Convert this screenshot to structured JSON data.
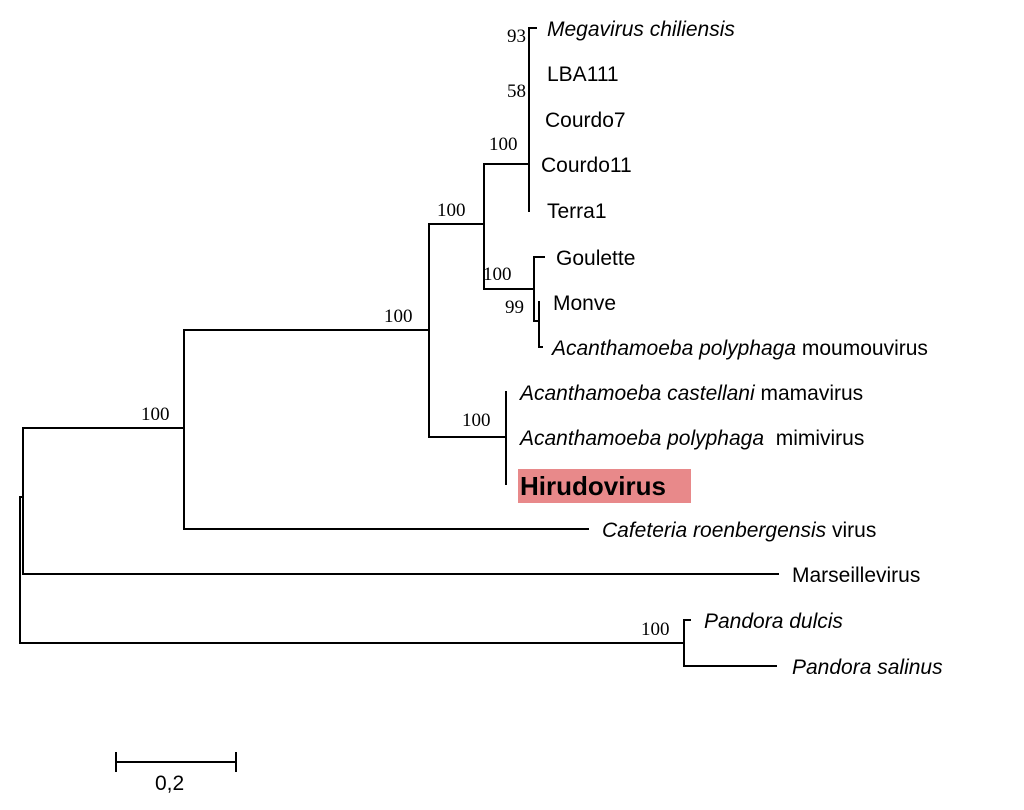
{
  "taxa": {
    "megavirus": [
      {
        "text": "Megavirus chiliensis",
        "italic": true
      }
    ],
    "lba111": [
      {
        "text": "LBA111",
        "italic": false
      }
    ],
    "courdo7": [
      {
        "text": "Courdo7",
        "italic": false
      }
    ],
    "courdo11": [
      {
        "text": "Courdo11",
        "italic": false
      }
    ],
    "terra1": [
      {
        "text": "Terra1",
        "italic": false
      }
    ],
    "goulette": [
      {
        "text": "Goulette",
        "italic": false
      }
    ],
    "monve": [
      {
        "text": "Monve",
        "italic": false
      }
    ],
    "moumouvirus": [
      {
        "text": "Acanthamoeba polyphaga",
        "italic": true
      },
      {
        "text": " moumouvirus",
        "italic": false
      }
    ],
    "mamavirus": [
      {
        "text": "Acanthamoeba castellani",
        "italic": true
      },
      {
        "text": " mamavirus",
        "italic": false
      }
    ],
    "mimivirus": [
      {
        "text": "Acanthamoeba polyphaga",
        "italic": true
      },
      {
        "text": "  mimivirus",
        "italic": false
      }
    ],
    "hirudovirus": [
      {
        "text": "Hirudovirus",
        "italic": false
      }
    ],
    "cafeteria": [
      {
        "text": "Cafeteria roenbergensis",
        "italic": true
      },
      {
        "text": " virus",
        "italic": false
      }
    ],
    "marseillevirus": [
      {
        "text": "Marseillevirus",
        "italic": false
      }
    ],
    "pandora_dulcis": [
      {
        "text": "Pandora dulcis",
        "italic": true
      }
    ],
    "pandora_salinus": [
      {
        "text": "Pandora salinus",
        "italic": true
      }
    ]
  },
  "highlight": {
    "taxon": "hirudovirus",
    "color": "#e8898a"
  },
  "bootstrap": {
    "megavirus_node": "93",
    "lba111_node": "58",
    "megavirus_clade": "100",
    "megavirus_moumou_clade": "100",
    "goulette_clade": "100",
    "monve_node": "99",
    "mimiviridae_clade": "100",
    "mimivirus_clade": "100",
    "cafeteria_clade": "100",
    "pandora_clade": "100"
  },
  "scale_bar": {
    "label": "0,2",
    "value": 0.2
  }
}
